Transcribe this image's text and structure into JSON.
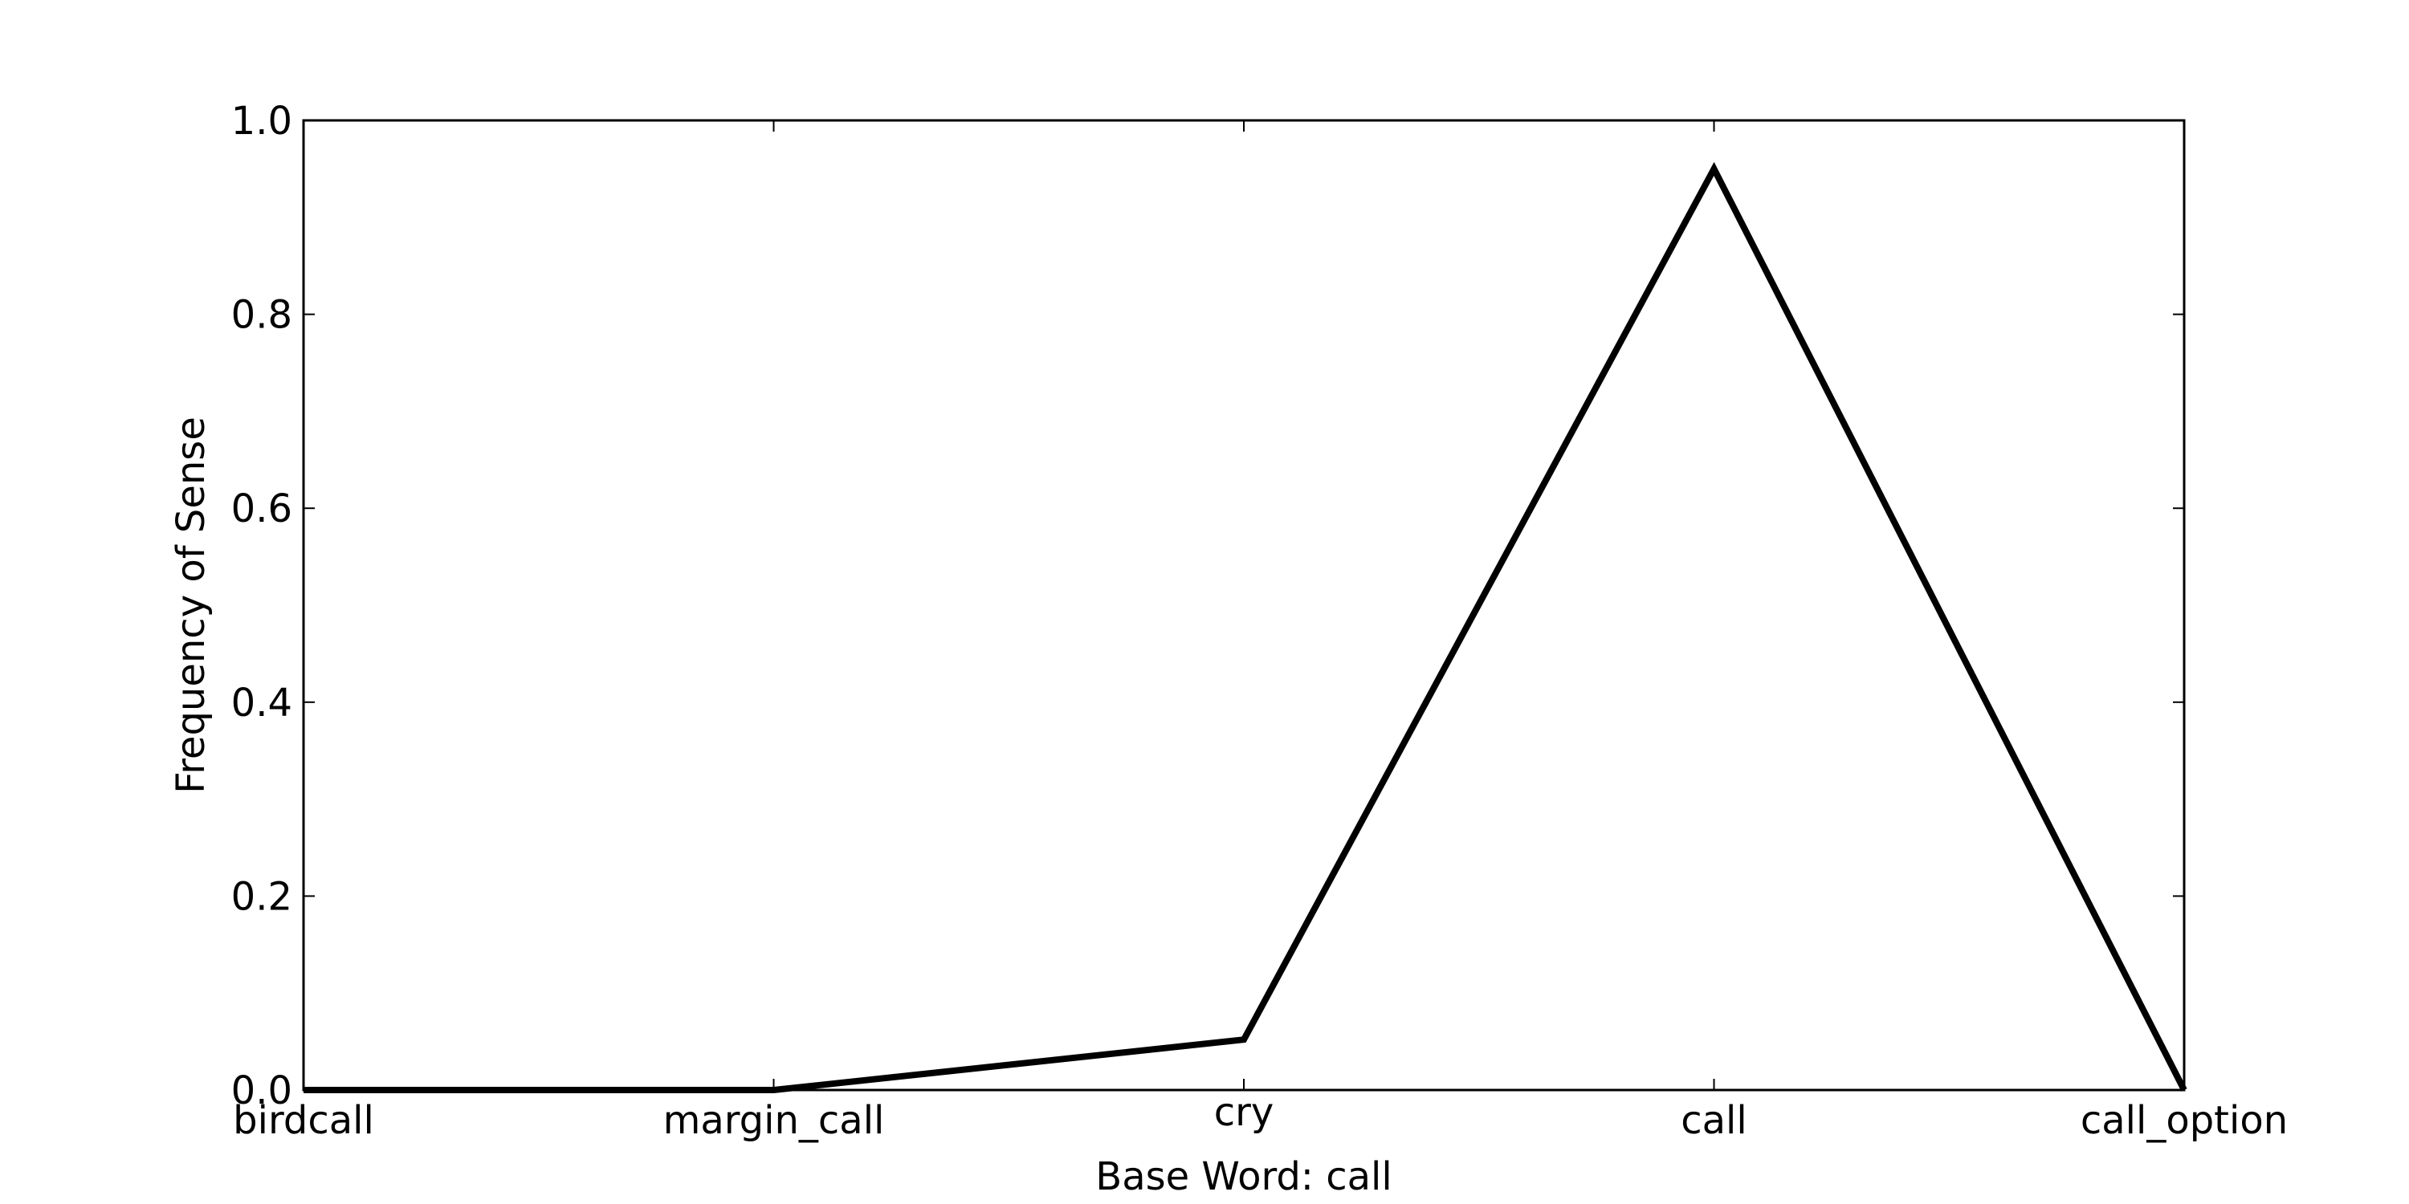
{
  "chart_data": {
    "type": "line",
    "title": "",
    "xlabel": "Base Word: call",
    "ylabel": "Frequency of Sense",
    "categories": [
      "birdcall",
      "margin_call",
      "cry",
      "call",
      "call_option"
    ],
    "series": [
      {
        "values": [
          0.0,
          0.0,
          0.052,
          0.95,
          0.0
        ],
        "color": "#000000"
      }
    ],
    "ylim": [
      0.0,
      1.0
    ],
    "yticks": [
      "0.0",
      "0.2",
      "0.4",
      "0.6",
      "0.8",
      "1.0"
    ],
    "grid": false,
    "legend": "none"
  }
}
